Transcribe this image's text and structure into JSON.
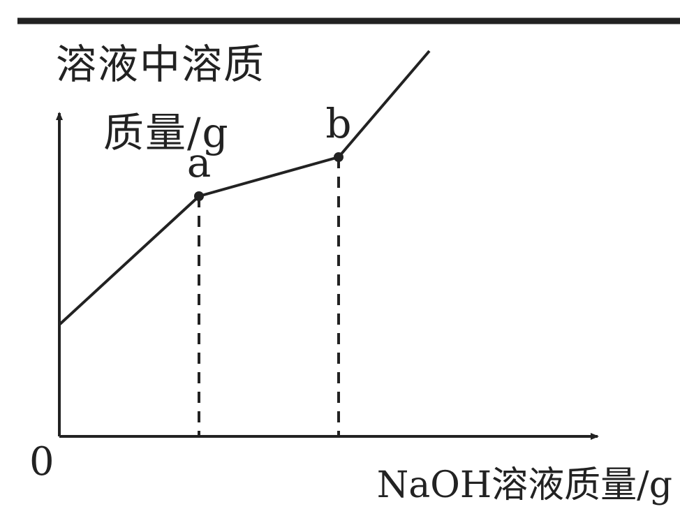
{
  "chart_data": {
    "type": "line",
    "title": "",
    "ylabel_lines": [
      "溶液中溶质",
      "质量/g"
    ],
    "xlabel": "NaOH溶液质量/g",
    "origin_label": "0",
    "series": [
      {
        "points": [
          {
            "x": 0,
            "y": 1.0
          },
          {
            "x": 2.0,
            "y": 2.15
          },
          {
            "x": 4.0,
            "y": 2.5
          },
          {
            "x": 5.3,
            "y": 3.45
          }
        ]
      }
    ],
    "annotations": [
      {
        "label": "a",
        "x": 2.0,
        "y": 2.15,
        "dropline": true
      },
      {
        "label": "b",
        "x": 4.0,
        "y": 2.5,
        "dropline": true
      }
    ],
    "xlim": [
      0,
      7.4
    ],
    "ylim": [
      0,
      4.4
    ],
    "grid": false,
    "colors": {
      "line": "#222222",
      "background": "#ffffff"
    }
  }
}
